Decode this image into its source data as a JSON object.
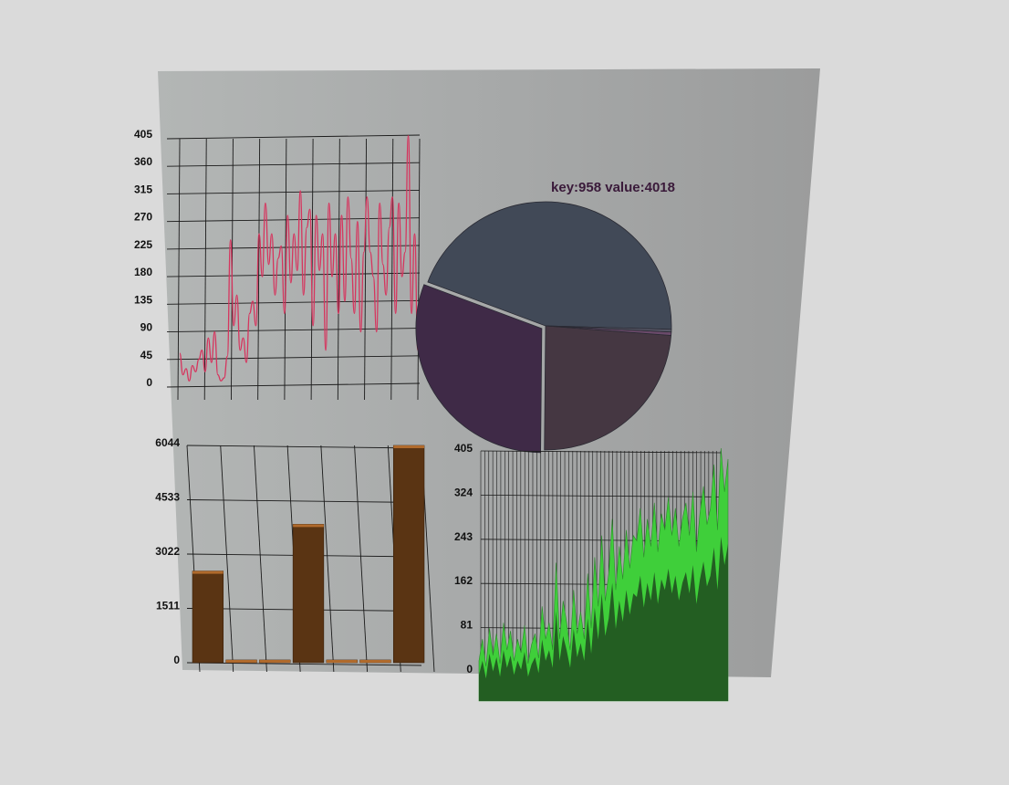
{
  "colors": {
    "background": "#dadada",
    "panel": "#a9abab",
    "grid": "#1a1a1a",
    "line_series": "#d6355e",
    "bar_fill": "#5a3413",
    "bar_edge": "#b06a2c",
    "area_fill": "#3fcf3a",
    "area_dark": "#1f4a1f",
    "pie": [
      "#414957",
      "#3f2a47",
      "#453742"
    ]
  },
  "chart_data": [
    {
      "type": "line",
      "title": "",
      "xlabel": "",
      "ylabel": "",
      "ylim": [
        0,
        405
      ],
      "yticks": [
        "405",
        "360",
        "315",
        "270",
        "225",
        "180",
        "135",
        "90",
        "45",
        "0"
      ],
      "grid": true,
      "series": [
        {
          "values": [
            55,
            20,
            30,
            10,
            35,
            25,
            45,
            60,
            25,
            80,
            40,
            90,
            20,
            10,
            15,
            50,
            240,
            100,
            150,
            60,
            80,
            40,
            120,
            140,
            100,
            250,
            180,
            300,
            200,
            250,
            150,
            210,
            230,
            120,
            280,
            170,
            250,
            190,
            320,
            150,
            260,
            290,
            100,
            280,
            190,
            250,
            60,
            300,
            180,
            250,
            120,
            280,
            140,
            310,
            210,
            120,
            270,
            90,
            220,
            310,
            220,
            180,
            90,
            300,
            200,
            150,
            260,
            310,
            120,
            300,
            180,
            220,
            410,
            120,
            250,
            60
          ]
        }
      ]
    },
    {
      "type": "pie",
      "title": "key:958 value:4018",
      "values": [
        4018,
        2750,
        2150,
        40,
        30
      ]
    },
    {
      "type": "bar",
      "title": "",
      "xlabel": "",
      "ylabel": "",
      "ylim": [
        0,
        6044
      ],
      "yticks": [
        "6044",
        "4533",
        "3022",
        "1511",
        "0"
      ],
      "grid": true,
      "values": [
        2550,
        40,
        40,
        3850,
        40,
        40,
        6100
      ]
    },
    {
      "type": "area",
      "title": "",
      "xlabel": "",
      "ylabel": "",
      "ylim": [
        0,
        405
      ],
      "yticks": [
        "405",
        "324",
        "243",
        "162",
        "81",
        "0"
      ],
      "grid": true,
      "series": [
        {
          "values": [
            20,
            60,
            10,
            80,
            30,
            70,
            15,
            90,
            40,
            75,
            20,
            60,
            35,
            85,
            15,
            50,
            70,
            25,
            120,
            60,
            90,
            40,
            200,
            60,
            130,
            90,
            40,
            150,
            70,
            110,
            60,
            180,
            80,
            210,
            120,
            250,
            130,
            180,
            280,
            150,
            230,
            170,
            260,
            190,
            250,
            240,
            300,
            210,
            280,
            230,
            310,
            220,
            290,
            260,
            320,
            250,
            300,
            230,
            280,
            310,
            250,
            330,
            220,
            290,
            340,
            270,
            300,
            380,
            260,
            410,
            330,
            390
          ]
        }
      ]
    }
  ]
}
